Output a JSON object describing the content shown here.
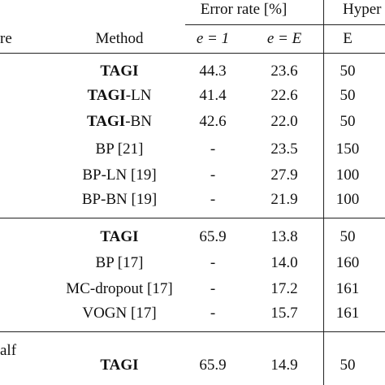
{
  "header": {
    "groups": [
      "Error rate [%]",
      "Hyper"
    ],
    "columns": [
      "re",
      "Method",
      "e = 1",
      "e = E",
      "E"
    ]
  },
  "sections": [
    {
      "label": null,
      "rows": [
        {
          "method_bold": "TAGI",
          "method": null,
          "e1": "44.3",
          "eE": "23.6",
          "E": "50"
        },
        {
          "method_bold": "TAGI",
          "method": "-LN",
          "e1": "41.4",
          "eE": "22.6",
          "E": "50"
        },
        {
          "method_bold": "TAGI",
          "method": "-BN",
          "e1": "42.6",
          "eE": "22.0",
          "E": "50"
        },
        {
          "method_bold": null,
          "method": "BP [21]",
          "e1": "-",
          "eE": "23.5",
          "E": "150"
        },
        {
          "method_bold": null,
          "method": "BP-LN [19]",
          "e1": "-",
          "eE": "27.9",
          "E": "100"
        },
        {
          "method_bold": null,
          "method": "BP-BN [19]",
          "e1": "-",
          "eE": "21.9",
          "E": "100"
        }
      ]
    },
    {
      "label": null,
      "rows": [
        {
          "method_bold": "TAGI",
          "method": null,
          "e1": "65.9",
          "eE": "13.8",
          "E": "50"
        },
        {
          "method_bold": null,
          "method": "BP [17]",
          "e1": "-",
          "eE": "14.0",
          "E": "160"
        },
        {
          "method_bold": null,
          "method": "MC-dropout [17]",
          "e1": "-",
          "eE": "17.2",
          "E": "161"
        },
        {
          "method_bold": null,
          "method": "VOGN [17]",
          "e1": "-",
          "eE": "15.7",
          "E": "161"
        }
      ]
    },
    {
      "label": "alf",
      "rows": [
        {
          "method_bold": "TAGI",
          "method": null,
          "e1": "65.9",
          "eE": "14.9",
          "E": "50"
        }
      ]
    }
  ]
}
